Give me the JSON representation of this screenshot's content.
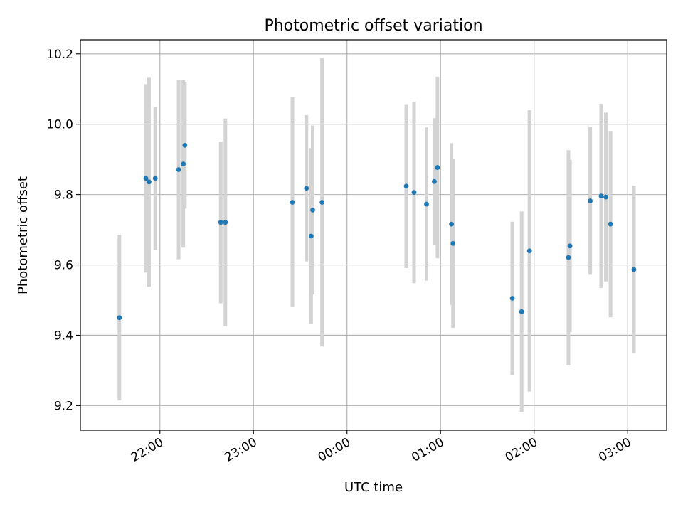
{
  "chart_data": {
    "type": "scatter",
    "title": "Photometric offset variation",
    "xlabel": "UTC time",
    "ylabel": "Photometric offset",
    "x_axis": {
      "kind": "time",
      "range": [
        "21:09",
        "03:25"
      ],
      "ticks": [
        "22:00",
        "23:00",
        "00:00",
        "01:00",
        "02:00",
        "03:00"
      ]
    },
    "ylim": [
      9.13,
      10.24
    ],
    "yticks": [
      9.2,
      9.4,
      9.6,
      9.8,
      10.0,
      10.2
    ],
    "grid": true,
    "colors": {
      "point": "#1f77b4",
      "errorbar": "#d3d3d3",
      "grid": "#b0b0b0"
    },
    "points": [
      {
        "time": "21:34",
        "y": 9.45,
        "err": 0.235
      },
      {
        "time": "21:51",
        "y": 9.846,
        "err": 0.268
      },
      {
        "time": "21:53",
        "y": 9.836,
        "err": 0.298
      },
      {
        "time": "21:57",
        "y": 9.846,
        "err": 0.203
      },
      {
        "time": "22:12",
        "y": 9.871,
        "err": 0.255
      },
      {
        "time": "22:15",
        "y": 9.887,
        "err": 0.238
      },
      {
        "time": "22:16",
        "y": 9.94,
        "err": 0.18
      },
      {
        "time": "22:39",
        "y": 9.721,
        "err": 0.23
      },
      {
        "time": "22:42",
        "y": 9.721,
        "err": 0.295
      },
      {
        "time": "23:25",
        "y": 9.778,
        "err": 0.298
      },
      {
        "time": "23:34",
        "y": 9.818,
        "err": 0.208
      },
      {
        "time": "23:37",
        "y": 9.682,
        "err": 0.25
      },
      {
        "time": "23:38",
        "y": 9.756,
        "err": 0.24
      },
      {
        "time": "23:44",
        "y": 9.778,
        "err": 0.41
      },
      {
        "time": "00:38",
        "y": 9.824,
        "err": 0.233
      },
      {
        "time": "00:43",
        "y": 9.806,
        "err": 0.258
      },
      {
        "time": "00:51",
        "y": 9.773,
        "err": 0.218
      },
      {
        "time": "00:56",
        "y": 9.837,
        "err": 0.18
      },
      {
        "time": "00:58",
        "y": 9.877,
        "err": 0.258
      },
      {
        "time": "01:07",
        "y": 9.716,
        "err": 0.23
      },
      {
        "time": "01:08",
        "y": 9.661,
        "err": 0.24
      },
      {
        "time": "01:46",
        "y": 9.505,
        "err": 0.218
      },
      {
        "time": "01:52",
        "y": 9.467,
        "err": 0.285
      },
      {
        "time": "01:57",
        "y": 9.64,
        "err": 0.4
      },
      {
        "time": "02:22",
        "y": 9.621,
        "err": 0.305
      },
      {
        "time": "02:23",
        "y": 9.654,
        "err": 0.245
      },
      {
        "time": "02:36",
        "y": 9.782,
        "err": 0.21
      },
      {
        "time": "02:43",
        "y": 9.796,
        "err": 0.262
      },
      {
        "time": "02:46",
        "y": 9.793,
        "err": 0.24
      },
      {
        "time": "02:49",
        "y": 9.716,
        "err": 0.265
      },
      {
        "time": "03:04",
        "y": 9.587,
        "err": 0.238
      }
    ]
  }
}
